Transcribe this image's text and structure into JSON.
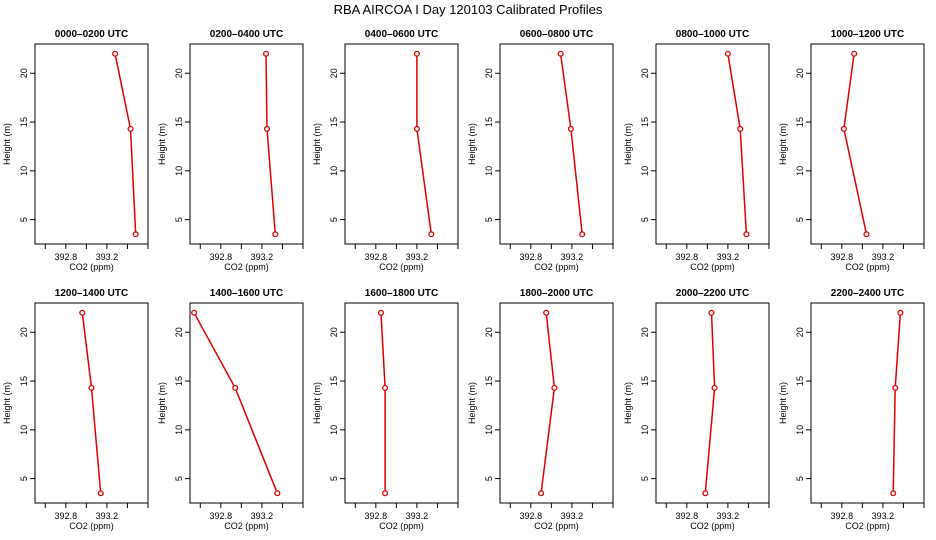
{
  "figure": {
    "title": "RBA AIRCOA I  Day 120103  Calibrated Profiles",
    "colors": {
      "series": "#dd0000",
      "axis": "#000000",
      "background": "#ffffff"
    }
  },
  "chart_data": [
    {
      "type": "line",
      "title": "0000–0200 UTC",
      "xlabel": "CO2 (ppm)",
      "ylabel": "Height (m)",
      "xlim": [
        392.5,
        393.6
      ],
      "ylim": [
        2.5,
        23
      ],
      "xticks": [
        "392.8",
        "393.2"
      ],
      "yticks": [
        "5",
        "10",
        "15",
        "20"
      ],
      "x": [
        393.28,
        393.43,
        393.48
      ],
      "y": [
        22,
        14.3,
        3.5
      ]
    },
    {
      "type": "line",
      "title": "0200–0400 UTC",
      "xlabel": "CO2 (ppm)",
      "ylabel": "Height (m)",
      "xlim": [
        392.5,
        393.6
      ],
      "ylim": [
        2.5,
        23
      ],
      "xticks": [
        "392.8",
        "393.2"
      ],
      "yticks": [
        "5",
        "10",
        "15",
        "20"
      ],
      "x": [
        393.24,
        393.25,
        393.33
      ],
      "y": [
        22,
        14.3,
        3.5
      ]
    },
    {
      "type": "line",
      "title": "0400–0600 UTC",
      "xlabel": "CO2 (ppm)",
      "ylabel": "Height (m)",
      "xlim": [
        392.5,
        393.6
      ],
      "ylim": [
        2.5,
        23
      ],
      "xticks": [
        "392.8",
        "393.2"
      ],
      "yticks": [
        "5",
        "10",
        "15",
        "20"
      ],
      "x": [
        393.2,
        393.2,
        393.34
      ],
      "y": [
        22,
        14.3,
        3.5
      ]
    },
    {
      "type": "line",
      "title": "0600–0800 UTC",
      "xlabel": "CO2 (ppm)",
      "ylabel": "Height (m)",
      "xlim": [
        392.5,
        393.6
      ],
      "ylim": [
        2.5,
        23
      ],
      "xticks": [
        "392.8",
        "393.2"
      ],
      "yticks": [
        "5",
        "10",
        "15",
        "20"
      ],
      "x": [
        393.09,
        393.19,
        393.3
      ],
      "y": [
        22,
        14.3,
        3.5
      ]
    },
    {
      "type": "line",
      "title": "0800–1000 UTC",
      "xlabel": "CO2 (ppm)",
      "ylabel": "Height (m)",
      "xlim": [
        392.5,
        393.6
      ],
      "ylim": [
        2.5,
        23
      ],
      "xticks": [
        "392.8",
        "393.2"
      ],
      "yticks": [
        "5",
        "10",
        "15",
        "20"
      ],
      "x": [
        393.2,
        393.32,
        393.38
      ],
      "y": [
        22,
        14.3,
        3.5
      ]
    },
    {
      "type": "line",
      "title": "1000–1200 UTC",
      "xlabel": "CO2 (ppm)",
      "ylabel": "Height (m)",
      "xlim": [
        392.5,
        393.6
      ],
      "ylim": [
        2.5,
        23
      ],
      "xticks": [
        "392.8",
        "393.2"
      ],
      "yticks": [
        "5",
        "10",
        "15",
        "20"
      ],
      "x": [
        392.92,
        392.82,
        393.04
      ],
      "y": [
        22,
        14.3,
        3.5
      ]
    },
    {
      "type": "line",
      "title": "1200–1400 UTC",
      "xlabel": "CO2 (ppm)",
      "ylabel": "Height (m)",
      "xlim": [
        392.5,
        393.6
      ],
      "ylim": [
        2.5,
        23
      ],
      "xticks": [
        "392.8",
        "393.2"
      ],
      "yticks": [
        "5",
        "10",
        "15",
        "20"
      ],
      "x": [
        392.96,
        393.05,
        393.14
      ],
      "y": [
        22,
        14.3,
        3.5
      ]
    },
    {
      "type": "line",
      "title": "1400–1600 UTC",
      "xlabel": "CO2 (ppm)",
      "ylabel": "Height (m)",
      "xlim": [
        392.5,
        393.6
      ],
      "ylim": [
        2.5,
        23
      ],
      "xticks": [
        "392.8",
        "393.2"
      ],
      "yticks": [
        "5",
        "10",
        "15",
        "20"
      ],
      "x": [
        392.54,
        392.94,
        393.35
      ],
      "y": [
        22,
        14.3,
        3.5
      ]
    },
    {
      "type": "line",
      "title": "1600–1800 UTC",
      "xlabel": "CO2 (ppm)",
      "ylabel": "Height (m)",
      "xlim": [
        392.5,
        393.6
      ],
      "ylim": [
        2.5,
        23
      ],
      "xticks": [
        "392.8",
        "393.2"
      ],
      "yticks": [
        "5",
        "10",
        "15",
        "20"
      ],
      "x": [
        392.85,
        392.89,
        392.89
      ],
      "y": [
        22,
        14.3,
        3.5
      ]
    },
    {
      "type": "line",
      "title": "1800–2000 UTC",
      "xlabel": "CO2 (ppm)",
      "ylabel": "Height (m)",
      "xlim": [
        392.5,
        393.6
      ],
      "ylim": [
        2.5,
        23
      ],
      "xticks": [
        "392.8",
        "393.2"
      ],
      "yticks": [
        "5",
        "10",
        "15",
        "20"
      ],
      "x": [
        392.95,
        393.03,
        392.9
      ],
      "y": [
        22,
        14.3,
        3.5
      ]
    },
    {
      "type": "line",
      "title": "2000–2200 UTC",
      "xlabel": "CO2 (ppm)",
      "ylabel": "Height (m)",
      "xlim": [
        392.5,
        393.6
      ],
      "ylim": [
        2.5,
        23
      ],
      "xticks": [
        "392.8",
        "393.2"
      ],
      "yticks": [
        "5",
        "10",
        "15",
        "20"
      ],
      "x": [
        393.04,
        393.07,
        392.98
      ],
      "y": [
        22,
        14.3,
        3.5
      ]
    },
    {
      "type": "line",
      "title": "2200–2400 UTC",
      "xlabel": "CO2 (ppm)",
      "ylabel": "Height (m)",
      "xlim": [
        392.5,
        393.6
      ],
      "ylim": [
        2.5,
        23
      ],
      "xticks": [
        "392.8",
        "393.2"
      ],
      "yticks": [
        "5",
        "10",
        "15",
        "20"
      ],
      "x": [
        393.37,
        393.32,
        393.3
      ],
      "y": [
        22,
        14.3,
        3.5
      ]
    }
  ]
}
